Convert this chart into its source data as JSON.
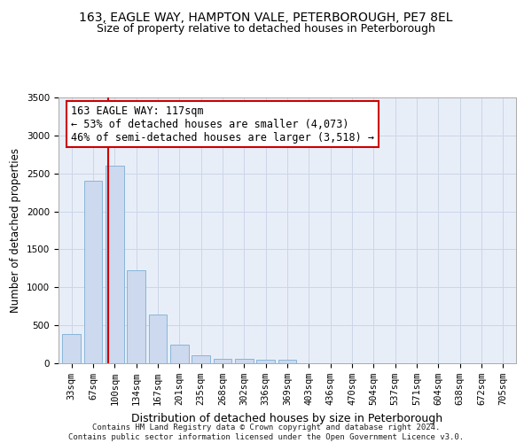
{
  "title_line1": "163, EAGLE WAY, HAMPTON VALE, PETERBOROUGH, PE7 8EL",
  "title_line2": "Size of property relative to detached houses in Peterborough",
  "xlabel": "Distribution of detached houses by size in Peterborough",
  "ylabel": "Number of detached properties",
  "footnote": "Contains HM Land Registry data © Crown copyright and database right 2024.\nContains public sector information licensed under the Open Government Licence v3.0.",
  "categories": [
    "33sqm",
    "67sqm",
    "100sqm",
    "134sqm",
    "167sqm",
    "201sqm",
    "235sqm",
    "268sqm",
    "302sqm",
    "336sqm",
    "369sqm",
    "403sqm",
    "436sqm",
    "470sqm",
    "504sqm",
    "537sqm",
    "571sqm",
    "604sqm",
    "638sqm",
    "672sqm",
    "705sqm"
  ],
  "values": [
    390,
    2400,
    2600,
    1230,
    640,
    250,
    100,
    60,
    55,
    50,
    45,
    0,
    0,
    0,
    0,
    0,
    0,
    0,
    0,
    0,
    0
  ],
  "bar_color": "#ccd9ee",
  "bar_edge_color": "#7bafd4",
  "annotation_box_color": "#ffffff",
  "annotation_border_color": "#cc0000",
  "vline_color": "#cc0000",
  "vline_x": 1.72,
  "annotation_text_line1": "163 EAGLE WAY: 117sqm",
  "annotation_text_line2": "← 53% of detached houses are smaller (4,073)",
  "annotation_text_line3": "46% of semi-detached houses are larger (3,518) →",
  "ylim": [
    0,
    3500
  ],
  "yticks": [
    0,
    500,
    1000,
    1500,
    2000,
    2500,
    3000,
    3500
  ],
  "grid_color": "#ccd6e8",
  "background_color": "#e8eef8",
  "title_fontsize": 10,
  "subtitle_fontsize": 9,
  "annotation_fontsize": 8.5,
  "xlabel_fontsize": 9,
  "ylabel_fontsize": 8.5,
  "tick_fontsize": 7.5
}
